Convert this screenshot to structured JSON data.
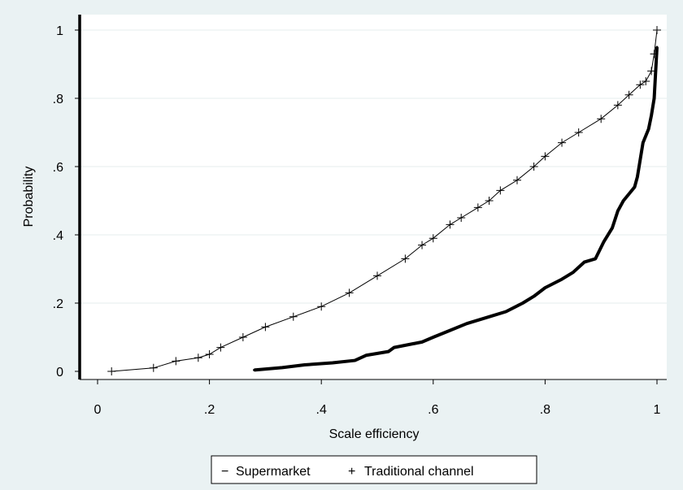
{
  "chart_data": {
    "type": "line",
    "xlabel": "Scale efficiency",
    "ylabel": "Probability",
    "xlim": [
      0,
      1
    ],
    "ylim": [
      0,
      1
    ],
    "grid": true,
    "legend_placement": "bottom",
    "x_ticks": [
      {
        "value": 0,
        "label": "0"
      },
      {
        "value": 0.2,
        "label": ".2"
      },
      {
        "value": 0.4,
        "label": ".4"
      },
      {
        "value": 0.6,
        "label": ".6"
      },
      {
        "value": 0.8,
        "label": ".8"
      },
      {
        "value": 1,
        "label": "1"
      }
    ],
    "y_ticks": [
      {
        "value": 0,
        "label": "0"
      },
      {
        "value": 0.2,
        "label": ".2"
      },
      {
        "value": 0.4,
        "label": ".4"
      },
      {
        "value": 0.6,
        "label": ".6"
      },
      {
        "value": 0.8,
        "label": ".8"
      },
      {
        "value": 1,
        "label": "1"
      }
    ],
    "series": [
      {
        "name": "Supermarket",
        "marker": "−",
        "color": "#000000",
        "x": [
          0.28,
          0.33,
          0.37,
          0.42,
          0.46,
          0.48,
          0.52,
          0.53,
          0.58,
          0.6,
          0.63,
          0.66,
          0.7,
          0.73,
          0.76,
          0.78,
          0.8,
          0.83,
          0.85,
          0.87,
          0.89,
          0.905,
          0.92,
          0.93,
          0.94,
          0.95,
          0.96,
          0.965,
          0.97,
          0.975,
          0.985,
          0.99,
          0.995,
          1.0
        ],
        "y": [
          0.004,
          0.011,
          0.019,
          0.025,
          0.032,
          0.047,
          0.058,
          0.07,
          0.086,
          0.1,
          0.12,
          0.14,
          0.16,
          0.175,
          0.2,
          0.22,
          0.245,
          0.27,
          0.29,
          0.32,
          0.33,
          0.38,
          0.42,
          0.47,
          0.5,
          0.52,
          0.54,
          0.57,
          0.62,
          0.67,
          0.71,
          0.75,
          0.8,
          0.95
        ]
      },
      {
        "name": "Traditional channel",
        "marker": "+",
        "color": "#000000",
        "x": [
          0.025,
          0.1,
          0.14,
          0.18,
          0.2,
          0.22,
          0.26,
          0.3,
          0.35,
          0.4,
          0.45,
          0.5,
          0.55,
          0.58,
          0.6,
          0.63,
          0.65,
          0.68,
          0.7,
          0.72,
          0.75,
          0.78,
          0.8,
          0.83,
          0.86,
          0.9,
          0.93,
          0.95,
          0.97,
          0.98,
          0.99,
          0.995,
          1.0
        ],
        "y": [
          0.0,
          0.01,
          0.03,
          0.04,
          0.05,
          0.07,
          0.1,
          0.13,
          0.16,
          0.19,
          0.23,
          0.28,
          0.33,
          0.37,
          0.39,
          0.43,
          0.45,
          0.48,
          0.5,
          0.53,
          0.56,
          0.6,
          0.63,
          0.67,
          0.7,
          0.74,
          0.78,
          0.81,
          0.84,
          0.85,
          0.88,
          0.93,
          1.0
        ]
      }
    ]
  }
}
